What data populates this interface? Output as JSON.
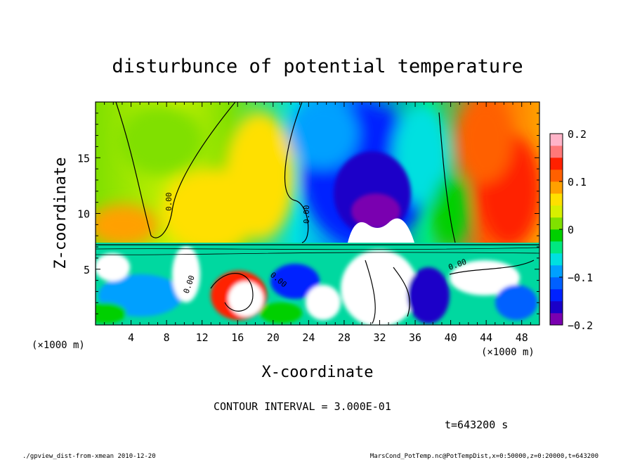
{
  "chart_data": {
    "type": "heatmap",
    "title": "disturbunce of potential temperature",
    "xlabel": "X-coordinate",
    "ylabel": "Z-coordinate",
    "x_unit": "(×1000 m)",
    "y_unit": "(×1000 m)",
    "xlim": [
      0,
      50
    ],
    "ylim": [
      0,
      20
    ],
    "x_ticks": [
      4,
      8,
      12,
      16,
      20,
      24,
      28,
      32,
      36,
      40,
      44,
      48
    ],
    "y_ticks": [
      5,
      10,
      15
    ],
    "colorbar": {
      "min": -0.2,
      "max": 0.2,
      "ticks": [
        0.2,
        0.1,
        0,
        -0.1,
        -0.2
      ],
      "tick_labels": [
        "0.2",
        "0.1",
        "0",
        "−0.1",
        "−0.2"
      ],
      "colors": [
        "#7a00b0",
        "#1a00c8",
        "#0022ff",
        "#0060ff",
        "#00a0ff",
        "#00e0e0",
        "#00e880",
        "#00d000",
        "#80e000",
        "#d8f000",
        "#ffe000",
        "#ffa000",
        "#ff6000",
        "#ff2000",
        "#ff7878",
        "#ffb4c8"
      ]
    },
    "contour_interval": "CONTOUR INTERVAL = 3.000E-01",
    "contour_labels": [
      "0.00",
      "0.00",
      "0.00",
      "0.00",
      "0.00"
    ],
    "time_label": "t=643200 s",
    "footer_left": "./gpview_dist-from-xmean  2010-12-20",
    "footer_right": "MarsCond_PotTemp.nc@PotTempDist,x=0:50000,z=0:20000,t=643200"
  }
}
